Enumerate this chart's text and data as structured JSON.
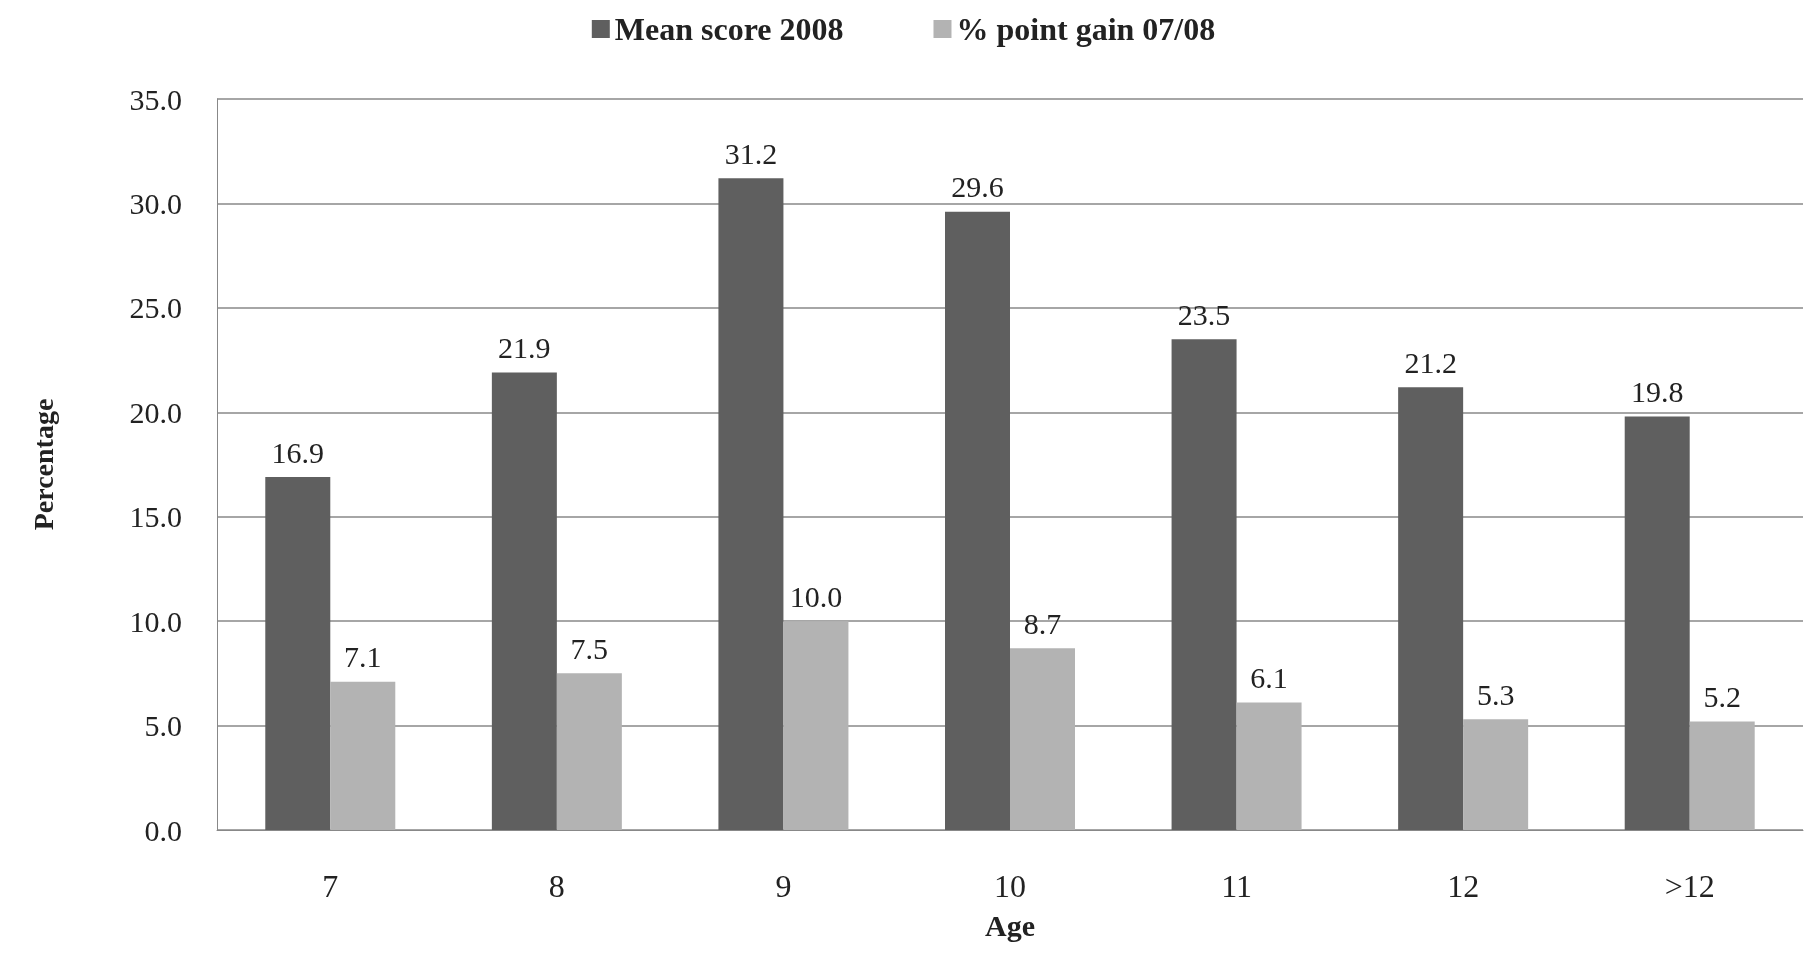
{
  "chart_data": {
    "type": "bar",
    "xlabel": "Age",
    "ylabel": "Percentage",
    "categories": [
      "7",
      "8",
      "9",
      "10",
      "11",
      "12",
      ">12"
    ],
    "series": [
      {
        "name": "Mean score 2008",
        "color": "#5f5f5f",
        "values": [
          16.9,
          21.9,
          31.2,
          29.6,
          23.5,
          21.2,
          19.8
        ],
        "value_labels": [
          "16.9",
          "21.9",
          "31.2",
          "29.6",
          "23.5",
          "21.2",
          "19.8"
        ]
      },
      {
        "name": "% point gain 07/08",
        "color": "#b3b3b3",
        "values": [
          7.1,
          7.5,
          10.0,
          8.7,
          6.1,
          5.3,
          5.2
        ],
        "value_labels": [
          "7.1",
          "7.5",
          "10.0",
          "8.7",
          "6.1",
          "5.3",
          "5.2"
        ]
      }
    ],
    "ylim": [
      0,
      35
    ],
    "yticks": [
      {
        "value": 0,
        "label": "0.0"
      },
      {
        "value": 5,
        "label": "5.0"
      },
      {
        "value": 10,
        "label": "10.0"
      },
      {
        "value": 15,
        "label": "15.0"
      },
      {
        "value": 20,
        "label": "20.0"
      },
      {
        "value": 25,
        "label": "25.0"
      },
      {
        "value": 30,
        "label": "30.0"
      },
      {
        "value": 35,
        "label": "35.0"
      }
    ],
    "grid": "y",
    "legend": "top"
  }
}
